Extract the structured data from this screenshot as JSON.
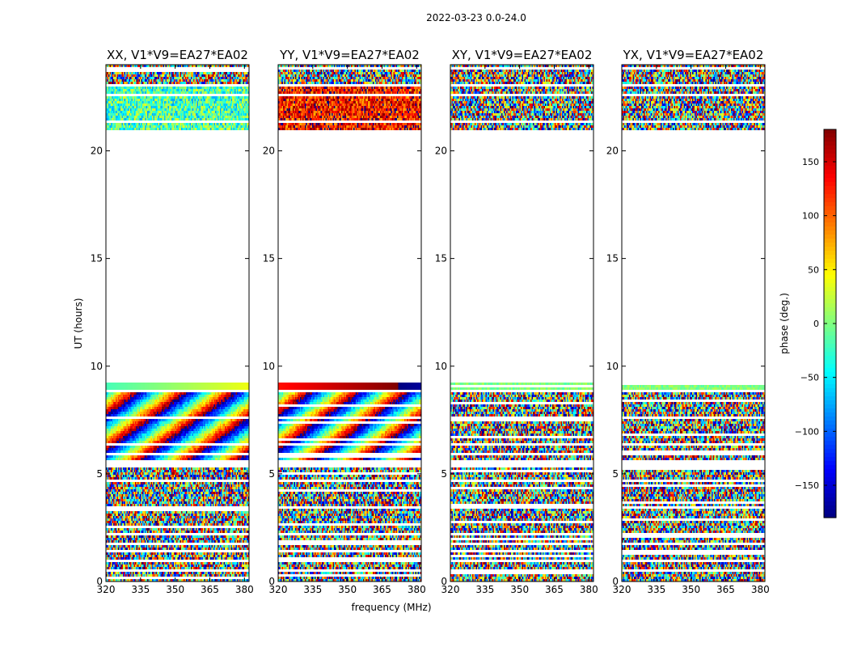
{
  "chart_data": {
    "type": "heatmap",
    "suptitle": "2022-03-23 0.0-24.0",
    "xlabel": "frequency (MHz)",
    "ylabel": "UT (hours)",
    "xlim": [
      320,
      382
    ],
    "ylim": [
      0,
      24
    ],
    "xticks": [
      320,
      335,
      350,
      365,
      380
    ],
    "yticks": [
      0,
      5,
      10,
      15,
      20
    ],
    "colorbar": {
      "label": "phase (deg.)",
      "range": [
        -180,
        180
      ],
      "ticks": [
        150,
        100,
        50,
        0,
        -50,
        -100,
        -150
      ],
      "tick_labels": [
        "150",
        "100",
        "50",
        "0",
        "−50",
        "−100",
        "−150"
      ],
      "cmap": "jet"
    },
    "data_blocks_ut": [
      [
        0.0,
        1.3
      ],
      [
        1.5,
        5.3
      ],
      [
        5.6,
        8.95
      ],
      [
        8.95,
        9.2
      ],
      [
        20.9,
        23.0
      ],
      [
        23.1,
        24.0
      ]
    ],
    "panels": [
      {
        "title": "XX, V1*V9=EA27*EA02",
        "pattern": "phase-ramp-fringe",
        "mean_phase_deg": -20,
        "ramp_row_ut": 9.1
      },
      {
        "title": "YY, V1*V9=EA27*EA02",
        "pattern": "phase-ramp-fringe",
        "mean_phase_deg": 130,
        "ramp_row_ut": 9.1
      },
      {
        "title": "XY, V1*V9=EA27*EA02",
        "pattern": "noise",
        "mean_phase_deg": 0,
        "ramp_row_ut": 9.1
      },
      {
        "title": "YX, V1*V9=EA27*EA02",
        "pattern": "noise",
        "mean_phase_deg": 0,
        "ramp_row_ut": 9.1
      }
    ]
  }
}
